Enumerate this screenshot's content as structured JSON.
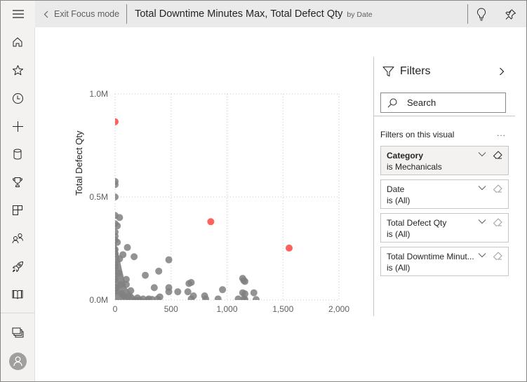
{
  "topbar": {
    "menu_icon": "hamburger-icon",
    "exit_focus_label": "Exit Focus mode",
    "visual_title": "Total Downtime Minutes Max, Total Defect Qty",
    "visual_subtitle": "by Date",
    "actions": [
      {
        "name": "insights",
        "icon": "lightbulb-icon"
      },
      {
        "name": "pin",
        "icon": "pin-icon"
      }
    ]
  },
  "leftnav": {
    "items": [
      {
        "name": "home",
        "icon": "home-icon"
      },
      {
        "name": "favorites",
        "icon": "star-icon"
      },
      {
        "name": "recent",
        "icon": "clock-icon"
      },
      {
        "name": "create",
        "icon": "plus-icon"
      },
      {
        "name": "datasets",
        "icon": "database-icon"
      },
      {
        "name": "goals",
        "icon": "trophy-icon"
      },
      {
        "name": "apps",
        "icon": "apps-icon"
      },
      {
        "name": "shared",
        "icon": "people-icon"
      },
      {
        "name": "deployment",
        "icon": "rocket-icon"
      },
      {
        "name": "learn",
        "icon": "book-icon"
      }
    ],
    "bottom_items": [
      {
        "name": "workspaces",
        "icon": "workspaces-icon"
      },
      {
        "name": "account",
        "icon": "avatar-icon"
      }
    ]
  },
  "filters": {
    "title": "Filters",
    "search_placeholder": "Search",
    "section_label": "Filters on this visual",
    "more_label": "...",
    "cards": [
      {
        "name": "Category",
        "value": "is Mechanicals",
        "active": true
      },
      {
        "name": "Date",
        "value": "is (All)",
        "active": false
      },
      {
        "name": "Total Defect Qty",
        "value": "is (All)",
        "active": false
      },
      {
        "name": "Total Downtime Minut...",
        "value": "is (All)",
        "active": false
      }
    ]
  },
  "colors": {
    "point": "#808080",
    "highlight": "#fd625e",
    "grid": "#c8c6c4",
    "axis_text": "#605e5c"
  },
  "chart_data": {
    "type": "scatter",
    "title": "Total Downtime Minutes Max, Total Defect Qty by Date",
    "xlabel": "",
    "ylabel": "Total Defect Qty",
    "xlim": [
      0,
      2000
    ],
    "ylim": [
      0,
      1000000
    ],
    "x_ticks": [
      "0",
      "500",
      "1,000",
      "1,500",
      "2,000"
    ],
    "y_ticks": [
      "0.0M",
      "0.5M",
      "1.0M"
    ],
    "grid": true,
    "legend": null,
    "series": [
      {
        "name": "Dates (gray)",
        "points": [
          [
            0,
            575000
          ],
          [
            0,
            560000
          ],
          [
            0,
            500000
          ],
          [
            0,
            410000
          ],
          [
            40,
            400000
          ],
          [
            0,
            370000
          ],
          [
            20,
            360000
          ],
          [
            0,
            330000
          ],
          [
            0,
            310000
          ],
          [
            0,
            290000
          ],
          [
            20,
            280000
          ],
          [
            110,
            255000
          ],
          [
            0,
            245000
          ],
          [
            0,
            225000
          ],
          [
            70,
            220000
          ],
          [
            170,
            210000
          ],
          [
            40,
            200000
          ],
          [
            0,
            175000
          ],
          [
            480,
            195000
          ],
          [
            0,
            160000
          ],
          [
            30,
            130000
          ],
          [
            390,
            140000
          ],
          [
            270,
            120000
          ],
          [
            100,
            100000
          ],
          [
            0,
            100000
          ],
          [
            50,
            75000
          ],
          [
            100,
            75000
          ],
          [
            10,
            60000
          ],
          [
            140,
            45000
          ],
          [
            0,
            40000
          ],
          [
            60,
            30000
          ],
          [
            80,
            20000
          ],
          [
            120,
            15000
          ],
          [
            200,
            10000
          ],
          [
            250,
            5000
          ],
          [
            350,
            60000
          ],
          [
            480,
            60000
          ],
          [
            480,
            40000
          ],
          [
            560,
            40000
          ],
          [
            400,
            15000
          ],
          [
            380,
            5000
          ],
          [
            300,
            5000
          ],
          [
            290,
            0
          ],
          [
            180,
            0
          ],
          [
            220,
            0
          ],
          [
            330,
            3000
          ],
          [
            660,
            80000
          ],
          [
            680,
            85000
          ],
          [
            650,
            40000
          ],
          [
            700,
            20000
          ],
          [
            680,
            5000
          ],
          [
            800,
            20000
          ],
          [
            810,
            5000
          ],
          [
            920,
            5000
          ],
          [
            960,
            50000
          ],
          [
            1140,
            105000
          ],
          [
            1150,
            95000
          ],
          [
            1160,
            90000
          ],
          [
            1140,
            35000
          ],
          [
            1160,
            30000
          ],
          [
            1240,
            35000
          ],
          [
            1100,
            5000
          ],
          [
            1150,
            5000
          ],
          [
            1260,
            2000
          ],
          [
            1160,
            3000
          ]
        ]
      },
      {
        "name": "Highlighted (red)",
        "points": [
          [
            0,
            865000
          ],
          [
            855,
            380000
          ],
          [
            1555,
            252000
          ]
        ]
      }
    ]
  }
}
